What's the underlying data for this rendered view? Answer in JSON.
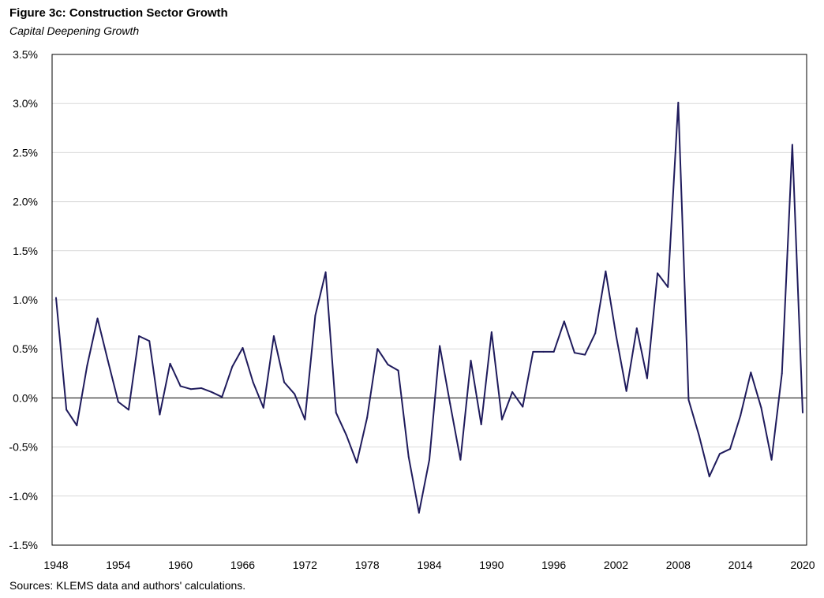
{
  "title": "Figure 3c: Construction Sector Growth",
  "subtitle": "Capital Deepening Growth",
  "source": "Sources: KLEMS data and authors' calculations.",
  "colors": {
    "line": "#1f1b5c",
    "grid": "#d9d9d9",
    "axis": "#000000"
  },
  "chart_data": {
    "type": "line",
    "title": "Figure 3c: Construction Sector Growth",
    "subtitle": "Capital Deepening Growth",
    "xlabel": "",
    "ylabel": "",
    "xlim": [
      1948,
      2020
    ],
    "ylim": [
      -1.5,
      3.5
    ],
    "grid": true,
    "legend": "none",
    "y_ticks": [
      -1.5,
      -1.0,
      -0.5,
      0.0,
      0.5,
      1.0,
      1.5,
      2.0,
      2.5,
      3.0,
      3.5
    ],
    "y_tick_labels": [
      "-1.5%",
      "-1.0%",
      "-0.5%",
      "0.0%",
      "0.5%",
      "1.0%",
      "1.5%",
      "2.0%",
      "2.5%",
      "3.0%",
      "3.5%"
    ],
    "x_ticks": [
      1948,
      1954,
      1960,
      1966,
      1972,
      1978,
      1984,
      1990,
      1996,
      2002,
      2008,
      2014,
      2020
    ],
    "x_tick_labels": [
      "1948",
      "1954",
      "1960",
      "1966",
      "1972",
      "1978",
      "1984",
      "1990",
      "1996",
      "2002",
      "2008",
      "2014",
      "2020"
    ],
    "x": [
      1948,
      1949,
      1950,
      1951,
      1952,
      1953,
      1954,
      1955,
      1956,
      1957,
      1958,
      1959,
      1960,
      1961,
      1962,
      1963,
      1964,
      1965,
      1966,
      1967,
      1968,
      1969,
      1970,
      1971,
      1972,
      1973,
      1974,
      1975,
      1976,
      1977,
      1978,
      1979,
      1980,
      1981,
      1982,
      1983,
      1984,
      1985,
      1986,
      1987,
      1988,
      1989,
      1990,
      1991,
      1992,
      1993,
      1994,
      1995,
      1996,
      1997,
      1998,
      1999,
      2000,
      2001,
      2002,
      2003,
      2004,
      2005,
      2006,
      2007,
      2008,
      2009,
      2010,
      2011,
      2012,
      2013,
      2014,
      2015,
      2016,
      2017,
      2018,
      2019,
      2020
    ],
    "series": [
      {
        "values": [
          1.02,
          -0.12,
          -0.28,
          0.33,
          0.81,
          0.38,
          -0.04,
          -0.12,
          0.63,
          0.58,
          -0.17,
          0.35,
          0.12,
          0.09,
          0.1,
          0.06,
          0.01,
          0.32,
          0.51,
          0.16,
          -0.1,
          0.63,
          0.16,
          0.04,
          -0.22,
          0.84,
          1.28,
          -0.15,
          -0.38,
          -0.66,
          -0.2,
          0.5,
          0.34,
          0.28,
          -0.6,
          -1.17,
          -0.63,
          0.53,
          -0.06,
          -0.63,
          0.38,
          -0.27,
          0.67,
          -0.22,
          0.06,
          -0.09,
          0.47,
          0.47,
          0.47,
          0.78,
          0.46,
          0.44,
          0.66,
          1.29,
          0.64,
          0.07,
          0.71,
          0.2,
          1.27,
          1.13,
          3.01,
          -0.02,
          -0.38,
          -0.8,
          -0.57,
          -0.52,
          -0.18,
          0.26,
          -0.1,
          -0.63,
          0.25,
          2.58,
          -0.15
        ]
      }
    ]
  }
}
